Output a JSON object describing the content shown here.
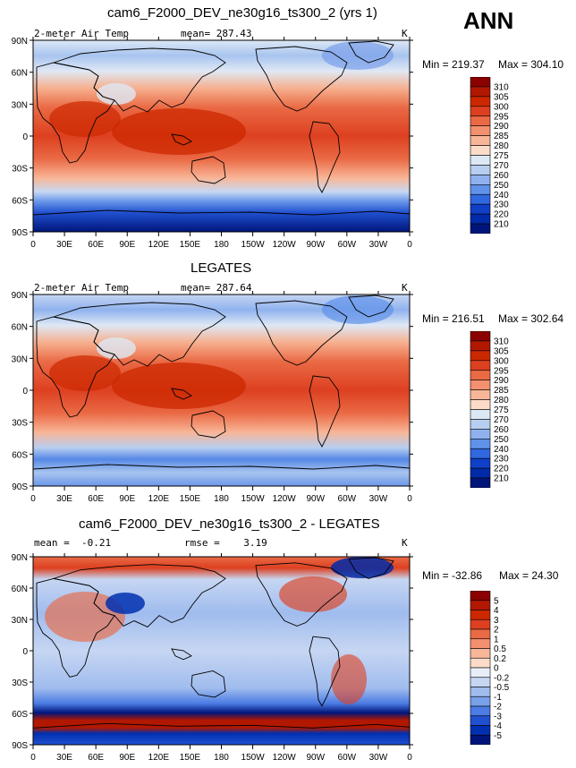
{
  "season": "ANN",
  "x_ticks": [
    "0",
    "30E",
    "60E",
    "90E",
    "120E",
    "150E",
    "180",
    "150W",
    "120W",
    "90W",
    "60W",
    "30W",
    "0"
  ],
  "y_ticks": [
    "90N",
    "60N",
    "30N",
    "0",
    "30S",
    "60S",
    "90S"
  ],
  "panels": [
    {
      "title": "cam6_F2000_DEV_ne30g16_ts300_2 (yrs 1)",
      "left_label": "2-meter Air Temp",
      "center_label": "mean= 287.43",
      "right_label": "K",
      "min_label": "Min = 219.37",
      "max_label": "Max = 304.10",
      "levels": [
        "310",
        "305",
        "300",
        "295",
        "290",
        "285",
        "280",
        "275",
        "270",
        "260",
        "250",
        "240",
        "230",
        "220",
        "210"
      ],
      "colors": [
        "#8b0000",
        "#b21800",
        "#cc2800",
        "#dd4020",
        "#ea6a45",
        "#f39070",
        "#f8b698",
        "#fcdcc8",
        "#dde8f5",
        "#b8cef0",
        "#8fb2ee",
        "#6092ea",
        "#3068e0",
        "#1040c8",
        "#002aa8",
        "#00157a"
      ]
    },
    {
      "title": "LEGATES",
      "left_label": "2-meter Air Temp",
      "center_label": "mean= 287.64",
      "right_label": "K",
      "min_label": "Min = 216.51",
      "max_label": "Max = 302.64",
      "levels": [
        "310",
        "305",
        "300",
        "295",
        "290",
        "285",
        "280",
        "275",
        "270",
        "260",
        "250",
        "240",
        "230",
        "220",
        "210"
      ],
      "colors": [
        "#8b0000",
        "#b21800",
        "#cc2800",
        "#dd4020",
        "#ea6a45",
        "#f39070",
        "#f8b698",
        "#fcdcc8",
        "#dde8f5",
        "#b8cef0",
        "#8fb2ee",
        "#6092ea",
        "#3068e0",
        "#1040c8",
        "#002aa8",
        "#00157a"
      ]
    },
    {
      "title": "cam6_F2000_DEV_ne30g16_ts300_2 - LEGATES",
      "left_label": "mean =  -0.21",
      "center_label": "rmse =    3.19",
      "right_label": "K",
      "min_label": "Min = -32.86",
      "max_label": "Max =  24.30",
      "levels": [
        "5",
        "4",
        "3",
        "2",
        "1",
        "0.5",
        "0.2",
        "0",
        "-0.2",
        "-0.5",
        "-1",
        "-2",
        "-3",
        "-4",
        "-5"
      ],
      "colors": [
        "#8b0000",
        "#b21800",
        "#cc2800",
        "#dd4020",
        "#ea6a45",
        "#f39070",
        "#f8b698",
        "#fcdcc8",
        "#e8eef8",
        "#c6d6f2",
        "#a0bcee",
        "#7aa0ea",
        "#4c7ce4",
        "#2050d0",
        "#0030b0",
        "#00157a"
      ]
    }
  ]
}
